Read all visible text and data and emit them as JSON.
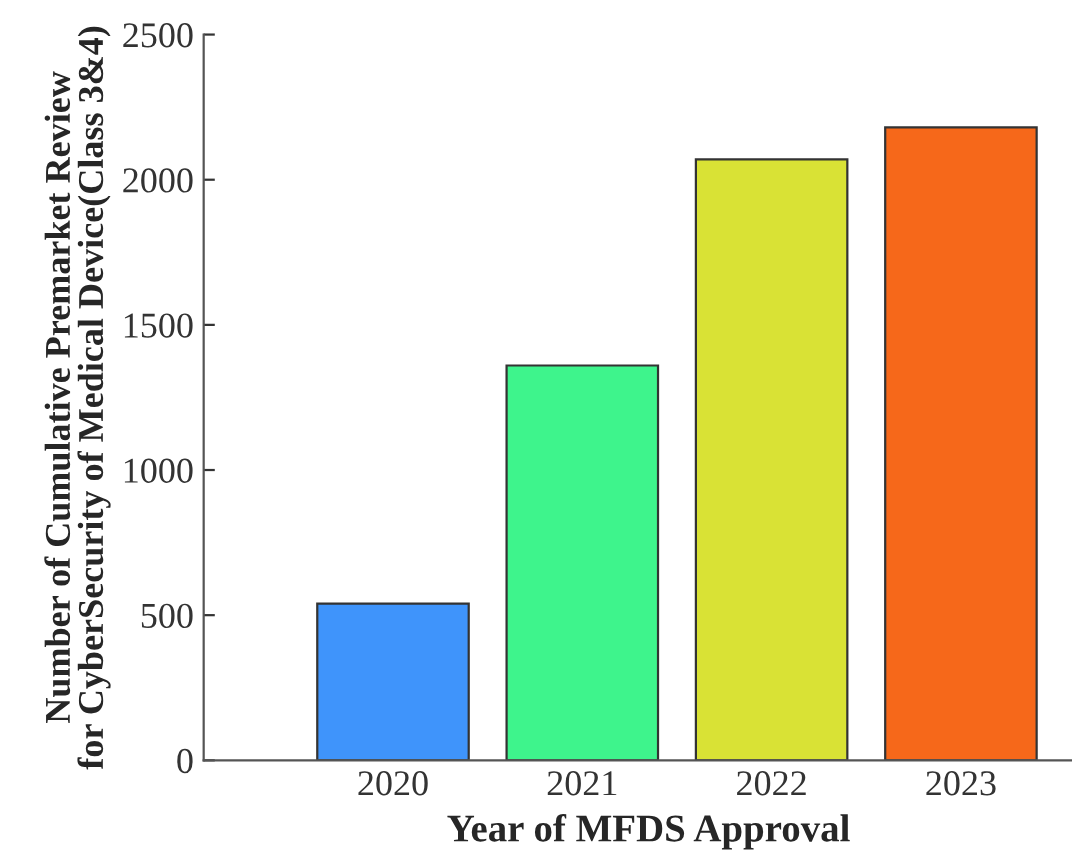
{
  "chart_data": {
    "type": "bar",
    "xlabel": "Year of MFDS Approval",
    "ylabel": "Number of Cumulative Premarket Review\nfor CyberSecurity of Medical Device(Class 3&4)",
    "categories": [
      "2020",
      "2021",
      "2022",
      "2023"
    ],
    "values": [
      540,
      1360,
      2070,
      2180
    ],
    "colors": [
      "#3f94fb",
      "#3ef48c",
      "#d9e235",
      "#f6681a"
    ],
    "ylim": [
      0,
      2500
    ],
    "yticks": [
      0,
      500,
      1000,
      1500,
      2000,
      2500
    ],
    "grid": false,
    "legend": false
  }
}
